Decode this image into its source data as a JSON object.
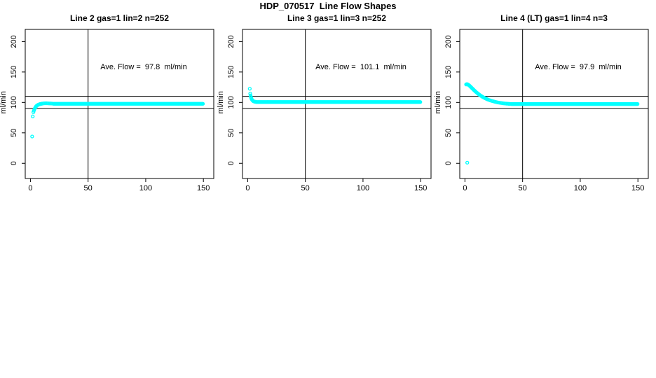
{
  "main_title": "HDP_070517  Line Flow Shapes",
  "colors": {
    "points": "#00FFFF",
    "axis": "#000000",
    "background": "#FFFFFF"
  },
  "chart_data": [
    {
      "type": "scatter",
      "title": "Line 2 gas=1 lin=2 n=252",
      "annotation": "Ave. Flow =  97.8  ml/min",
      "ave_flow_ml_min": 97.8,
      "n_points": 252,
      "xlabel": "",
      "ylabel": "ml/min",
      "xlim": [
        0,
        150
      ],
      "ylim": [
        0,
        200
      ],
      "x_ticks": [
        0,
        50,
        100,
        150
      ],
      "y_ticks": [
        0,
        50,
        100,
        150,
        200
      ],
      "ref_lines_y": [
        90,
        110
      ],
      "ref_line_x": 50,
      "grid": false,
      "legend": false,
      "series": {
        "outliers": [
          [
            1.5,
            44
          ],
          [
            2,
            77
          ]
        ],
        "ramp": [
          [
            2.6,
            84
          ],
          [
            3,
            86.5
          ],
          [
            3.4,
            88.5
          ],
          [
            3.8,
            90
          ],
          [
            4.2,
            91.5
          ],
          [
            4.6,
            92.7
          ],
          [
            5,
            93.7
          ],
          [
            5.5,
            94.6
          ],
          [
            6,
            95.3
          ],
          [
            6.5,
            95.9
          ],
          [
            7,
            96.4
          ],
          [
            7.5,
            96.8
          ],
          [
            8,
            97.1
          ],
          [
            8.5,
            97.4
          ],
          [
            9,
            97.6
          ],
          [
            9.5,
            97.8
          ],
          [
            10,
            98
          ],
          [
            11,
            98.3
          ],
          [
            12,
            98.5
          ],
          [
            13,
            98.6
          ],
          [
            14,
            98.6
          ],
          [
            15,
            98.5
          ],
          [
            16,
            98.4
          ],
          [
            17,
            98.3
          ],
          [
            18,
            98.2
          ],
          [
            19,
            98.1
          ]
        ],
        "plateau": {
          "x_start": 20,
          "x_end": 150,
          "y": 97.8
        }
      }
    },
    {
      "type": "scatter",
      "title": "Line 3 gas=1 lin=3 n=252",
      "annotation": "Ave. Flow =  101.1  ml/min",
      "ave_flow_ml_min": 101.1,
      "n_points": 252,
      "xlabel": "",
      "ylabel": "ml/min",
      "xlim": [
        0,
        150
      ],
      "ylim": [
        0,
        200
      ],
      "x_ticks": [
        0,
        50,
        100,
        150
      ],
      "y_ticks": [
        0,
        50,
        100,
        150,
        200
      ],
      "ref_lines_y": [
        90,
        110
      ],
      "ref_line_x": 50,
      "grid": false,
      "legend": false,
      "series": {
        "outliers": [
          [
            1.8,
            122.5
          ]
        ],
        "ramp": [
          [
            2.2,
            114.5
          ],
          [
            2.5,
            111.5
          ],
          [
            2.8,
            109
          ],
          [
            3.1,
            107
          ],
          [
            3.4,
            105.5
          ],
          [
            3.8,
            104.2
          ],
          [
            4.2,
            103.2
          ],
          [
            4.6,
            102.5
          ],
          [
            5,
            102
          ],
          [
            5.5,
            101.6
          ],
          [
            6,
            101.3
          ],
          [
            6.5,
            101.1
          ],
          [
            7,
            100.9
          ]
        ],
        "plateau": {
          "x_start": 7.5,
          "x_end": 150,
          "y": 100.7
        }
      }
    },
    {
      "type": "scatter",
      "title": "Line 4 (LT) gas=1 lin=4 n=3",
      "annotation": "Ave. Flow =  97.9  ml/min",
      "ave_flow_ml_min": 97.9,
      "n_points": 3,
      "xlabel": "",
      "ylabel": "ml/min",
      "xlim": [
        0,
        150
      ],
      "ylim": [
        0,
        200
      ],
      "x_ticks": [
        0,
        50,
        100,
        150
      ],
      "y_ticks": [
        0,
        50,
        100,
        150,
        200
      ],
      "ref_lines_y": [
        90,
        110
      ],
      "ref_line_x": 50,
      "grid": false,
      "legend": false,
      "series": {
        "outliers": [
          [
            2,
            1
          ]
        ],
        "ramp": [
          [
            1,
            129.5
          ],
          [
            1.4,
            130
          ],
          [
            1.8,
            130
          ],
          [
            2.2,
            129.8
          ],
          [
            2.6,
            129.4
          ],
          [
            3,
            128.9
          ],
          [
            3.5,
            128.2
          ],
          [
            4,
            127.4
          ],
          [
            4.5,
            126.5
          ],
          [
            5,
            125.6
          ],
          [
            5.5,
            124.7
          ],
          [
            6,
            123.7
          ],
          [
            6.5,
            122.8
          ],
          [
            7,
            121.8
          ],
          [
            7.5,
            120.9
          ],
          [
            8,
            120
          ],
          [
            8.5,
            119.1
          ],
          [
            9,
            118.2
          ],
          [
            9.5,
            117.3
          ],
          [
            10,
            116.5
          ],
          [
            10.5,
            115.7
          ],
          [
            11,
            114.9
          ],
          [
            11.5,
            114.1
          ],
          [
            12,
            113.4
          ],
          [
            12.5,
            112.7
          ],
          [
            13,
            112
          ],
          [
            13.5,
            111.3
          ],
          [
            14,
            110.7
          ],
          [
            14.5,
            110.1
          ],
          [
            15,
            109.5
          ],
          [
            15.5,
            108.9
          ],
          [
            16,
            108.4
          ],
          [
            16.5,
            107.9
          ],
          [
            17,
            107.4
          ],
          [
            17.5,
            106.9
          ],
          [
            18,
            106.4
          ],
          [
            18.5,
            106
          ],
          [
            19,
            105.5
          ],
          [
            19.5,
            105.1
          ],
          [
            20,
            104.7
          ],
          [
            21,
            104
          ],
          [
            22,
            103.3
          ],
          [
            23,
            102.7
          ],
          [
            24,
            102.1
          ],
          [
            25,
            101.6
          ],
          [
            26,
            101.1
          ],
          [
            27,
            100.6
          ],
          [
            28,
            100.2
          ],
          [
            29,
            99.8
          ],
          [
            30,
            99.5
          ],
          [
            31,
            99.2
          ],
          [
            32,
            98.9
          ],
          [
            33,
            98.6
          ],
          [
            34,
            98.4
          ],
          [
            35,
            98.2
          ],
          [
            36,
            98
          ],
          [
            37,
            97.9
          ],
          [
            38,
            97.7
          ],
          [
            39,
            97.6
          ],
          [
            40,
            97.5
          ]
        ],
        "plateau": {
          "x_start": 40.5,
          "x_end": 150,
          "y": 97.4
        }
      }
    }
  ]
}
